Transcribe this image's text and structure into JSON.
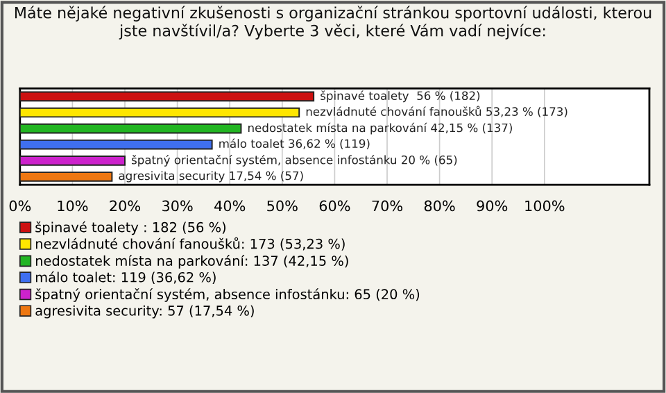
{
  "chart_data": {
    "type": "bar",
    "orientation": "horizontal",
    "title": "Máte nějaké negativní zkušenosti s organizační stránkou sportovní události, kterou jste navštívil/a? Vyberte 3 věci, které Vám vadí nejvíce:",
    "categories": [
      null,
      null,
      null,
      null,
      null,
      null
    ],
    "series": [
      {
        "name": "špinavé toalety : 182 (56 %)",
        "color": "#cc1111",
        "values": [
          56,
          null,
          null,
          null,
          null,
          null
        ],
        "value_labels": [
          "špinavé toalety  56 % (182)",
          null,
          null,
          null,
          null,
          null
        ]
      },
      {
        "name": "nezvládnuté chování fanoušků: 173 (53,23 %)",
        "color": "#ffe600",
        "values": [
          null,
          53.23,
          null,
          null,
          null,
          null
        ],
        "value_labels": [
          null,
          "nezvládnuté chování fanoušků 53,23 % (173)",
          null,
          null,
          null,
          null
        ]
      },
      {
        "name": "nedostatek místa na parkování: 137 (42,15 %)",
        "color": "#22b522",
        "values": [
          null,
          null,
          42.15,
          null,
          null,
          null
        ],
        "value_labels": [
          null,
          null,
          "nedostatek místa na parkování 42,15 % (137)",
          null,
          null,
          null
        ]
      },
      {
        "name": "málo toalet: 119 (36,62 %)",
        "color": "#3f6ff0",
        "values": [
          null,
          null,
          null,
          36.62,
          null,
          null
        ],
        "value_labels": [
          null,
          null,
          null,
          "málo toalet 36,62 % (119)",
          null,
          null
        ]
      },
      {
        "name": "špatný orientační systém, absence infostánku: 65 (20 %)",
        "color": "#cc22cc",
        "values": [
          null,
          null,
          null,
          null,
          20,
          null
        ],
        "value_labels": [
          null,
          null,
          null,
          null,
          "špatný orientační systém, absence infostánku 20 % (65)",
          null
        ]
      },
      {
        "name": "agresivita security: 57 (17,54 %)",
        "color": "#ee7711",
        "values": [
          null,
          null,
          null,
          null,
          null,
          17.54
        ],
        "value_labels": [
          null,
          null,
          null,
          null,
          null,
          "agresivita security 17,54 % (57)"
        ]
      }
    ],
    "xlim": [
      0,
      120
    ],
    "xticks": [
      {
        "value": 0,
        "label": "0%"
      },
      {
        "value": 10,
        "label": "10%"
      },
      {
        "value": 20,
        "label": "20%"
      },
      {
        "value": 30,
        "label": "30%"
      },
      {
        "value": 40,
        "label": "40%"
      },
      {
        "value": 50,
        "label": "50%"
      },
      {
        "value": 60,
        "label": "60%"
      },
      {
        "value": 70,
        "label": "70%"
      },
      {
        "value": 80,
        "label": "80%"
      },
      {
        "value": 90,
        "label": "90%"
      },
      {
        "value": 100,
        "label": "100%"
      }
    ],
    "grid": "x",
    "legend": "bottom"
  }
}
